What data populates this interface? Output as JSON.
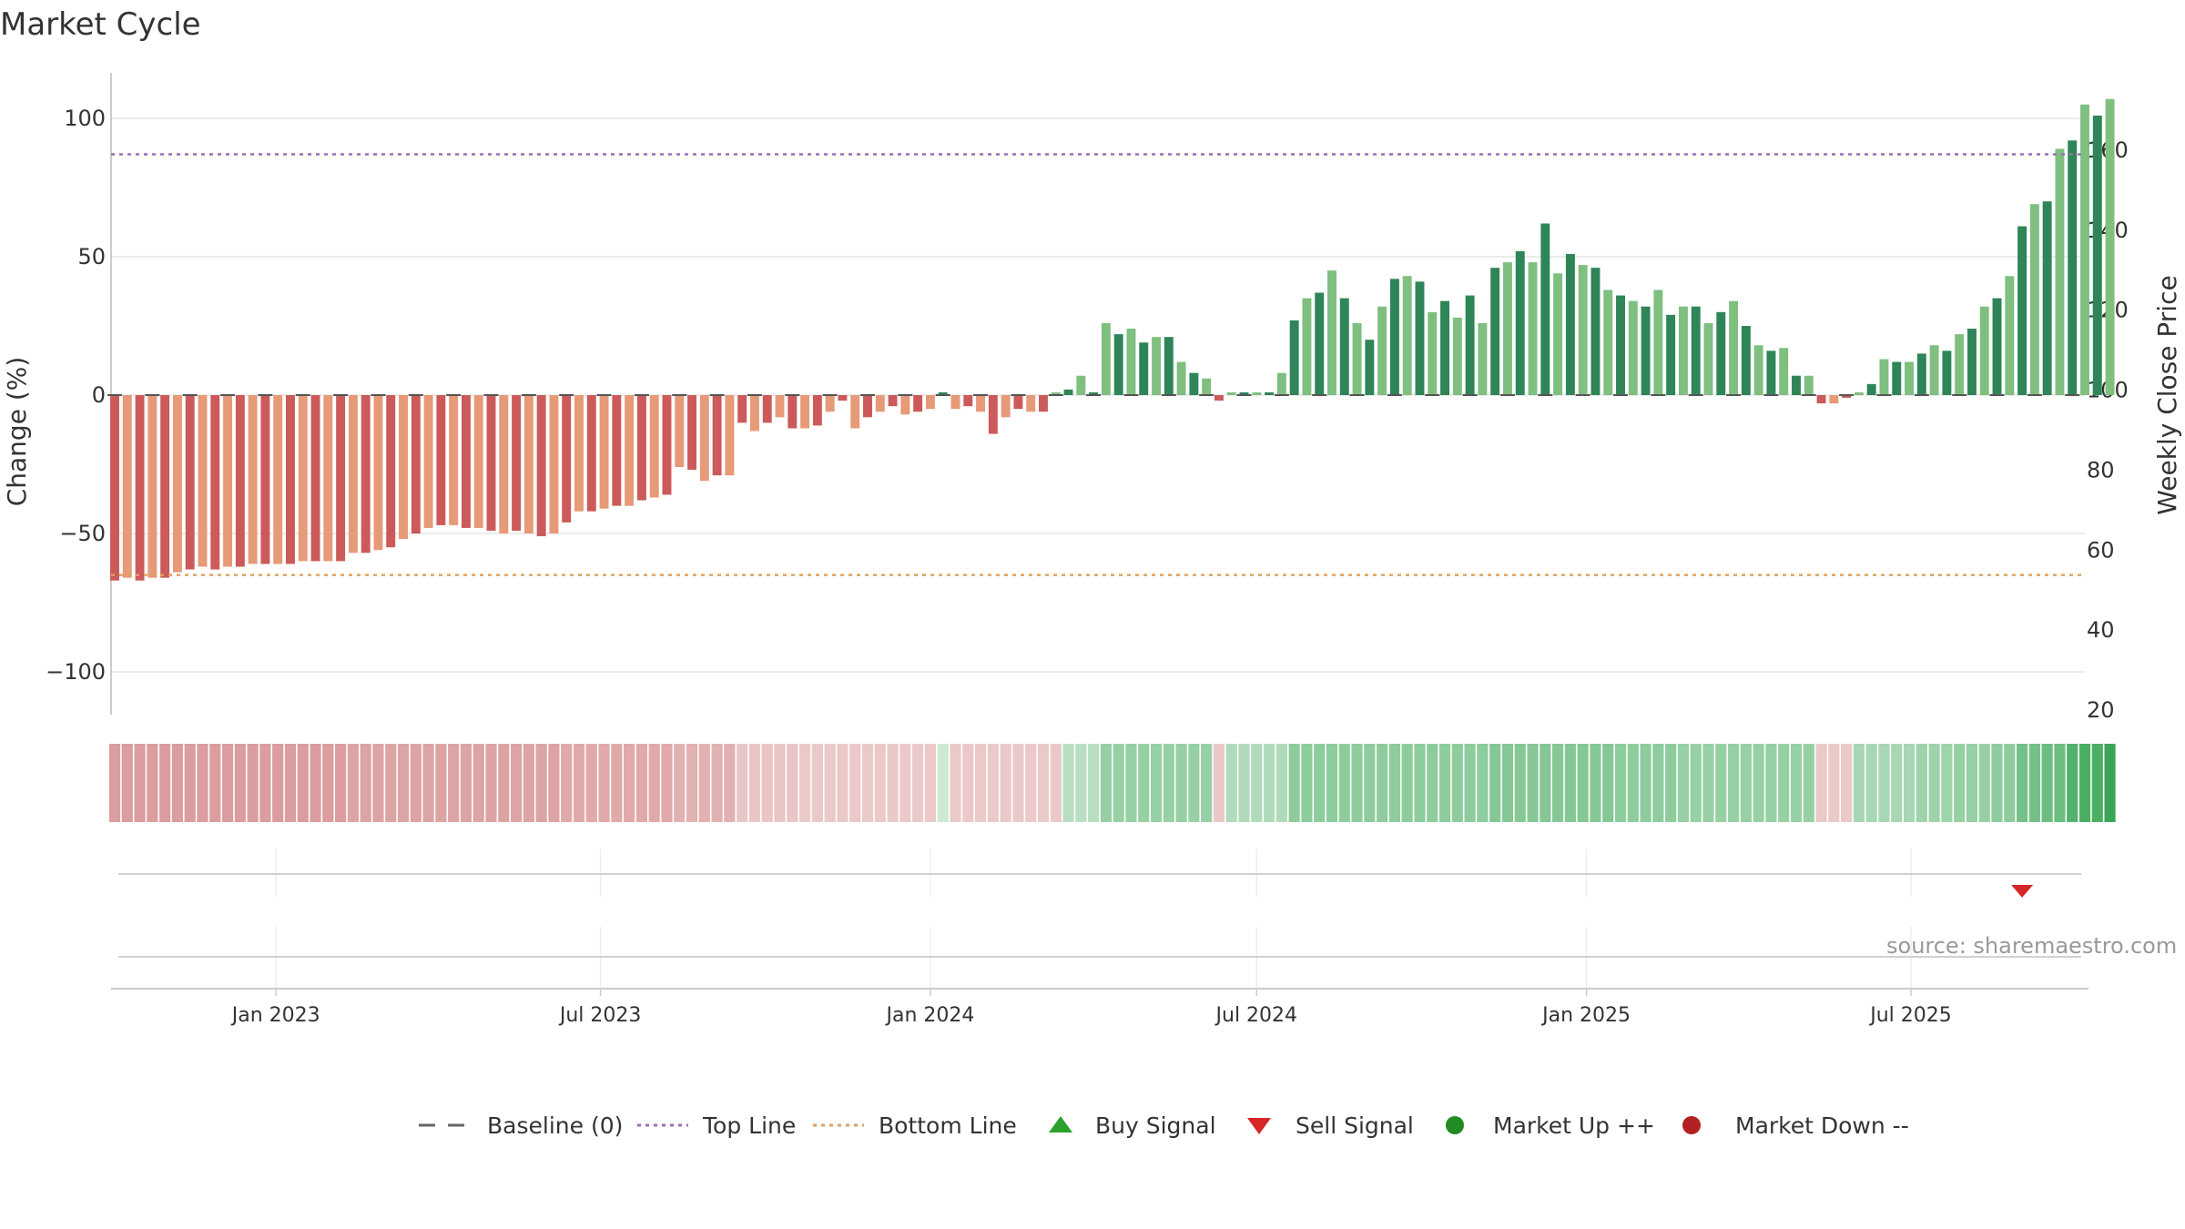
{
  "chart_data": {
    "type": "bar",
    "title": "Market Cycle",
    "ylabel": "Change (%)",
    "ylabel_right": "Weekly Close Price",
    "ylim": [
      -115,
      115
    ],
    "ylim_right": [
      20,
      175
    ],
    "yticks": [
      100,
      50,
      0,
      -50,
      -100
    ],
    "yticks_labels": [
      "100",
      "50",
      "0",
      "−50",
      "−100"
    ],
    "yticks_right": [
      160,
      140,
      120,
      100,
      80,
      60,
      40,
      20
    ],
    "top_line": 87,
    "bottom_line": -65,
    "x_start": "2022-10-03",
    "week_count": 158,
    "xticks": [
      {
        "date": "2023-01-01",
        "label": "Jan 2023"
      },
      {
        "date": "2023-07-01",
        "label": "Jul 2023"
      },
      {
        "date": "2024-01-01",
        "label": "Jan 2024"
      },
      {
        "date": "2024-07-01",
        "label": "Jul 2024"
      },
      {
        "date": "2025-01-01",
        "label": "Jan 2025"
      },
      {
        "date": "2025-07-01",
        "label": "Jul 2025"
      }
    ],
    "change_values": [
      -67,
      -66,
      -67,
      -66,
      -66,
      -64,
      -63,
      -62,
      -63,
      -62,
      -62,
      -61,
      -61,
      -61,
      -61,
      -60,
      -60,
      -60,
      -60,
      -57,
      -57,
      -56,
      -55,
      -52,
      -50,
      -48,
      -47,
      -47,
      -48,
      -48,
      -49,
      -50,
      -49,
      -50,
      -51,
      -50,
      -46,
      -42,
      -42,
      -41,
      -40,
      -40,
      -38,
      -37,
      -36,
      -26,
      -27,
      -31,
      -29,
      -29,
      -10,
      -13,
      -10,
      -8,
      -12,
      -12,
      -11,
      -6,
      -2,
      -12,
      -8,
      -6,
      -4,
      -7,
      -6,
      -5,
      1,
      -5,
      -4,
      -6,
      -14,
      -8,
      -5,
      -6,
      -6,
      1,
      2,
      7,
      1,
      26,
      22,
      24,
      19,
      21,
      21,
      12,
      8,
      6,
      -2,
      1,
      1,
      1,
      1,
      8,
      27,
      35,
      37,
      45,
      35,
      26,
      20,
      32,
      42,
      43,
      41,
      30,
      34,
      28,
      36,
      26,
      46,
      48,
      52,
      48,
      62,
      44,
      51,
      47,
      46,
      38,
      36,
      34,
      32,
      38,
      29,
      32,
      32,
      26,
      30,
      34,
      25,
      18,
      16,
      17,
      7,
      7,
      -3,
      -3,
      -1,
      1,
      4,
      13,
      12,
      12,
      15,
      18,
      16,
      22,
      24,
      32,
      35,
      43,
      61,
      69,
      70,
      89,
      92,
      105,
      101,
      107
    ],
    "strip_intensity": [
      -0.55,
      -0.55,
      -0.55,
      -0.55,
      -0.55,
      -0.55,
      -0.55,
      -0.55,
      -0.55,
      -0.55,
      -0.55,
      -0.55,
      -0.55,
      -0.55,
      -0.55,
      -0.55,
      -0.55,
      -0.55,
      -0.55,
      -0.5,
      -0.5,
      -0.5,
      -0.5,
      -0.5,
      -0.5,
      -0.5,
      -0.5,
      -0.5,
      -0.5,
      -0.5,
      -0.5,
      -0.5,
      -0.5,
      -0.5,
      -0.5,
      -0.5,
      -0.45,
      -0.45,
      -0.45,
      -0.45,
      -0.45,
      -0.45,
      -0.45,
      -0.45,
      -0.45,
      -0.4,
      -0.4,
      -0.4,
      -0.4,
      -0.4,
      -0.25,
      -0.25,
      -0.25,
      -0.25,
      -0.25,
      -0.22,
      -0.22,
      -0.22,
      -0.22,
      -0.22,
      -0.22,
      -0.22,
      -0.22,
      -0.22,
      -0.22,
      -0.22,
      0.12,
      -0.22,
      -0.22,
      -0.22,
      -0.22,
      -0.22,
      -0.22,
      -0.22,
      -0.22,
      -0.22,
      0.25,
      0.25,
      0.25,
      0.45,
      0.45,
      0.45,
      0.45,
      0.45,
      0.45,
      0.45,
      0.45,
      0.45,
      -0.22,
      0.3,
      0.3,
      0.3,
      0.3,
      0.3,
      0.5,
      0.5,
      0.5,
      0.5,
      0.5,
      0.5,
      0.5,
      0.5,
      0.5,
      0.5,
      0.5,
      0.5,
      0.5,
      0.5,
      0.5,
      0.5,
      0.55,
      0.55,
      0.55,
      0.55,
      0.55,
      0.55,
      0.55,
      0.55,
      0.55,
      0.55,
      0.5,
      0.5,
      0.5,
      0.5,
      0.5,
      0.45,
      0.45,
      0.45,
      0.45,
      0.45,
      0.45,
      0.45,
      0.45,
      0.45,
      0.45,
      0.45,
      -0.22,
      -0.22,
      -0.22,
      0.35,
      0.35,
      0.35,
      0.35,
      0.35,
      0.4,
      0.4,
      0.4,
      0.45,
      0.45,
      0.45,
      0.5,
      0.5,
      0.65,
      0.65,
      0.7,
      0.7,
      0.85,
      0.9,
      0.9,
      1.0
    ],
    "sell_signals": [
      152
    ],
    "buy_signals": [],
    "annotation": "source: sharemaestro.com",
    "legend": [
      {
        "kind": "dash",
        "label": "Baseline (0)"
      },
      {
        "kind": "dot-purple",
        "label": "Top Line"
      },
      {
        "kind": "dot-orange",
        "label": "Bottom Line"
      },
      {
        "kind": "tri-up",
        "label": "Buy Signal"
      },
      {
        "kind": "tri-down",
        "label": "Sell Signal"
      },
      {
        "kind": "circle-green",
        "label": "Market Up ++"
      },
      {
        "kind": "circle-red",
        "label": "Market Down --"
      }
    ],
    "legend_position": "bottom-center",
    "grid": true
  },
  "colors": {
    "pos_dark": "#2e8557",
    "pos_light": "#7fbf7f",
    "neg_dark": "#cc5a5a",
    "neg_light": "#e69a78",
    "top_line": "#9b6fb5",
    "bottom_line": "#e0a060",
    "buy_signal": "#2ca02c",
    "sell_signal": "#d62728",
    "market_up": "#228b22",
    "market_down": "#b22222",
    "grid": "#e6e6e6",
    "axis": "#cccccc",
    "text": "#333333",
    "source_text": "#999999"
  }
}
